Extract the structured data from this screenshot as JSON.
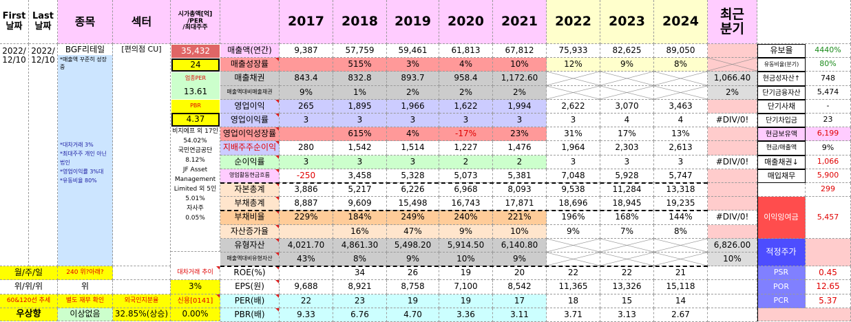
{
  "header": {
    "first_date": "First\n날짜",
    "last_date": "Last\n날짜",
    "stock": "종목",
    "sector": "섹터",
    "mcap_label": "시가총액[억]\n/PER\n/최대주주",
    "years": [
      "2017",
      "2018",
      "2019",
      "2020",
      "2021",
      "2022",
      "2023",
      "2024"
    ],
    "recent_quarter": "최근\n분기"
  },
  "company": {
    "first_date": "2022/\n12/10",
    "last_date": "2022/\n12/10",
    "name": "BGF리테일",
    "memo1": "*매출액 꾸준히 성장중",
    "memo2": "*대차거래 3%\n*최대주주 개인 아닌 법인\n*영업이익률 3%대\n*유동비율 80%",
    "sector": "[편의점 CU]",
    "market_cap": "35,432",
    "per": "24",
    "industry_per_label": "업종PER",
    "industry_per": "13.61",
    "pbr_label": "PBR",
    "pbr": "4.37",
    "shareholders": "비지에프 외 17인\n54.02%\n국민연금공단\n8.12%\nJF Asset Management Limited 외 5인 5.01%\n자사주\n0.05%",
    "borrow_label": "대차거래 추이",
    "borrow_value": "3%",
    "credit_label": "신용[0141]",
    "credit_value": "0.00%",
    "foreign_label": "외국인지분율",
    "foreign_value": "32.85%(상승)"
  },
  "footer_left": {
    "row1": [
      "월/주/일",
      "240 위?아래?"
    ],
    "row2": [
      "위/위/위",
      "위"
    ],
    "row3": [
      "60&120선 추세",
      "별도 재무 확인"
    ],
    "row4": [
      "우상향",
      "이상없음"
    ]
  },
  "rows": [
    {
      "label": "매출액(연간)",
      "v": [
        "9,387",
        "57,759",
        "59,461",
        "61,813",
        "67,812",
        "75,933",
        "82,625",
        "89,050"
      ],
      "q": ""
    },
    {
      "label": "매출성장률",
      "v": [
        "",
        "515%",
        "3%",
        "4%",
        "10%",
        "12%",
        "9%",
        "8%"
      ],
      "q": ""
    },
    {
      "label": "매출채권",
      "v": [
        "843.4",
        "832.8",
        "893.7",
        "958.4",
        "1,172.60",
        "",
        "",
        ""
      ],
      "q": "1,066.40"
    },
    {
      "label": "매출액대비매출채권",
      "v": [
        "9%",
        "1%",
        "2%",
        "2%",
        "2%",
        "",
        "",
        ""
      ],
      "q": "2%"
    },
    {
      "label": "영업이익",
      "v": [
        "265",
        "1,895",
        "1,966",
        "1,622",
        "1,994",
        "2,622",
        "3,070",
        "3,463"
      ],
      "q": ""
    },
    {
      "label": "영업이익률",
      "v": [
        "3",
        "3",
        "3",
        "3",
        "3",
        "3",
        "4",
        "4"
      ],
      "q": "#DIV/0!"
    },
    {
      "label": "영업이익성장률",
      "v": [
        "",
        "615%",
        "4%",
        "-17%",
        "23%",
        "31%",
        "17%",
        "13%"
      ],
      "q": ""
    },
    {
      "label": "지배주주순이익",
      "v": [
        "280",
        "1,542",
        "1,514",
        "1,227",
        "1,476",
        "1,964",
        "2,303",
        "2,613"
      ],
      "q": ""
    },
    {
      "label": "순이익률",
      "v": [
        "3",
        "3",
        "3",
        "2",
        "2",
        "3",
        "3",
        "3"
      ],
      "q": "#DIV/0!"
    },
    {
      "label": "영업활동현금흐름",
      "v": [
        "-250",
        "3,458",
        "5,328",
        "5,073",
        "5,381",
        "7,048",
        "5,928",
        "5,747"
      ],
      "q": ""
    },
    {
      "label": "자본총계",
      "v": [
        "3,886",
        "5,217",
        "6,226",
        "6,968",
        "8,093",
        "9,538",
        "11,284",
        "13,318"
      ],
      "q": ""
    },
    {
      "label": "부채총계",
      "v": [
        "8,887",
        "9,609",
        "15,498",
        "16,743",
        "17,871",
        "18,696",
        "18,945",
        "19,235"
      ],
      "q": ""
    },
    {
      "label": "부채비율",
      "v": [
        "229%",
        "184%",
        "249%",
        "240%",
        "221%",
        "196%",
        "168%",
        "144%"
      ],
      "q": "#DIV/0!"
    },
    {
      "label": "자산증가율",
      "v": [
        "",
        "16%",
        "47%",
        "9%",
        "10%",
        "9%",
        "7%",
        "8%"
      ],
      "q": ""
    },
    {
      "label": "유형자산",
      "v": [
        "4,021.70",
        "4,861.30",
        "5,498.20",
        "5,914.50",
        "6,140.80",
        "",
        "",
        ""
      ],
      "q": "6,826.00"
    },
    {
      "label": "매출액대비유형자산",
      "v": [
        "43%",
        "8%",
        "9%",
        "10%",
        "9%",
        "",
        "",
        ""
      ],
      "q": "10%"
    },
    {
      "label": "ROE(%)",
      "v": [
        "",
        "34",
        "26",
        "19",
        "20",
        "22",
        "22",
        "21"
      ],
      "q": ""
    },
    {
      "label": "EPS(원)",
      "v": [
        "9,688",
        "8,921",
        "8,758",
        "7,100",
        "8,542",
        "11,365",
        "13,326",
        "15,118"
      ],
      "q": ""
    },
    {
      "label": "PER(배)",
      "v": [
        "22",
        "23",
        "19",
        "19",
        "17",
        "18",
        "15",
        "14"
      ],
      "q": ""
    },
    {
      "label": "PBR(배)",
      "v": [
        "9.33",
        "6.76",
        "4.70",
        "3.36",
        "3.11",
        "3.71",
        "3.13",
        "2.67"
      ],
      "q": ""
    }
  ],
  "right": {
    "top_label": "유보율",
    "top_value": "4440%",
    "items": [
      {
        "label": "유동비율(분기)",
        "value": "80%"
      },
      {
        "label": "현금성자산↑",
        "value": "748"
      },
      {
        "label": "단기금융자산",
        "value": "5,474"
      },
      {
        "label": "단기사채",
        "value": "-"
      },
      {
        "label": "단기차입금",
        "value": "23"
      },
      {
        "label": "현금보유액",
        "value": "6,199"
      },
      {
        "label": "현금/매출액",
        "value": "9%"
      },
      {
        "label": "매출채권↓",
        "value": "1,066"
      },
      {
        "label": "매입채무",
        "value": "5,900"
      }
    ],
    "after_value": "299",
    "retained_label": "이익잉여금",
    "retained_value": "5,457",
    "fair_price": "적정주가",
    "psr_label": "PSR",
    "psr_value": "0.45",
    "por_label": "POR",
    "por_value": "12.65",
    "pcr_label": "PCR",
    "pcr_value": "5.37"
  }
}
